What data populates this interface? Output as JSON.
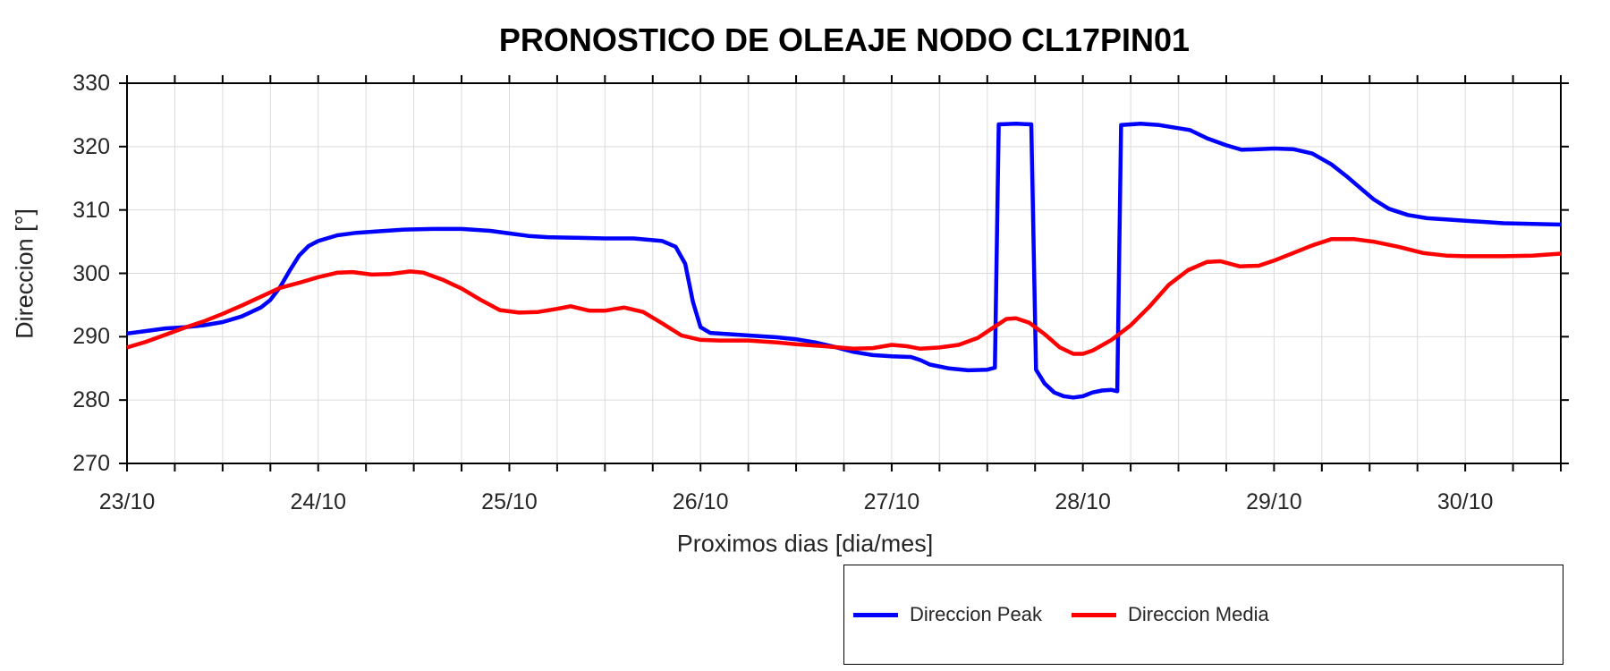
{
  "chart_data": {
    "type": "line",
    "title": "PRONOSTICO DE OLEAJE NODO CL17PIN01",
    "xlabel": "Proximos dias [dia/mes]",
    "ylabel": "Direccion [°]",
    "x_unit": "day of October (23 = 23/10 00:00)",
    "xlim": [
      23,
      30.5
    ],
    "ylim": [
      270,
      330
    ],
    "x_major_ticks": [
      23,
      24,
      25,
      26,
      27,
      28,
      29,
      30
    ],
    "x_tick_labels": [
      "23/10",
      "24/10",
      "25/10",
      "26/10",
      "27/10",
      "28/10",
      "29/10",
      "30/10"
    ],
    "x_minor_step": 0.25,
    "y_ticks": [
      270,
      280,
      290,
      300,
      310,
      320,
      330
    ],
    "grid": true,
    "legend_position": "below-right-outside",
    "colors": {
      "grid": "#dbdbdb",
      "axis": "#000000",
      "text": "#262626"
    },
    "series": [
      {
        "name": "Direccion Peak",
        "color": "#0000ff",
        "points": [
          [
            23.0,
            290.5
          ],
          [
            23.1,
            290.9
          ],
          [
            23.2,
            291.3
          ],
          [
            23.3,
            291.5
          ],
          [
            23.4,
            291.8
          ],
          [
            23.5,
            292.3
          ],
          [
            23.6,
            293.2
          ],
          [
            23.7,
            294.6
          ],
          [
            23.75,
            295.8
          ],
          [
            23.8,
            297.8
          ],
          [
            23.85,
            300.4
          ],
          [
            23.9,
            302.8
          ],
          [
            23.95,
            304.3
          ],
          [
            24.0,
            305.1
          ],
          [
            24.1,
            306.0
          ],
          [
            24.2,
            306.4
          ],
          [
            24.3,
            306.6
          ],
          [
            24.45,
            306.9
          ],
          [
            24.6,
            307.0
          ],
          [
            24.75,
            307.0
          ],
          [
            24.9,
            306.7
          ],
          [
            25.0,
            306.3
          ],
          [
            25.1,
            305.9
          ],
          [
            25.2,
            305.7
          ],
          [
            25.35,
            305.6
          ],
          [
            25.5,
            305.5
          ],
          [
            25.65,
            305.5
          ],
          [
            25.8,
            305.1
          ],
          [
            25.87,
            304.2
          ],
          [
            25.92,
            301.5
          ],
          [
            25.96,
            295.5
          ],
          [
            26.0,
            291.5
          ],
          [
            26.05,
            290.6
          ],
          [
            26.15,
            290.4
          ],
          [
            26.3,
            290.1
          ],
          [
            26.4,
            289.9
          ],
          [
            26.5,
            289.6
          ],
          [
            26.6,
            289.1
          ],
          [
            26.7,
            288.4
          ],
          [
            26.8,
            287.6
          ],
          [
            26.9,
            287.1
          ],
          [
            27.0,
            286.9
          ],
          [
            27.1,
            286.8
          ],
          [
            27.15,
            286.3
          ],
          [
            27.2,
            285.6
          ],
          [
            27.3,
            285.0
          ],
          [
            27.4,
            284.7
          ],
          [
            27.5,
            284.8
          ],
          [
            27.54,
            285.1
          ],
          [
            27.56,
            323.5
          ],
          [
            27.65,
            323.6
          ],
          [
            27.73,
            323.5
          ],
          [
            27.755,
            284.8
          ],
          [
            27.8,
            282.6
          ],
          [
            27.85,
            281.2
          ],
          [
            27.9,
            280.6
          ],
          [
            27.95,
            280.4
          ],
          [
            28.0,
            280.6
          ],
          [
            28.05,
            281.2
          ],
          [
            28.1,
            281.5
          ],
          [
            28.15,
            281.6
          ],
          [
            28.18,
            281.4
          ],
          [
            28.2,
            323.4
          ],
          [
            28.3,
            323.6
          ],
          [
            28.4,
            323.4
          ],
          [
            28.5,
            322.9
          ],
          [
            28.56,
            322.6
          ],
          [
            28.65,
            321.3
          ],
          [
            28.75,
            320.2
          ],
          [
            28.83,
            319.5
          ],
          [
            28.92,
            319.6
          ],
          [
            29.0,
            319.7
          ],
          [
            29.1,
            319.6
          ],
          [
            29.2,
            318.9
          ],
          [
            29.3,
            317.2
          ],
          [
            29.38,
            315.3
          ],
          [
            29.45,
            313.5
          ],
          [
            29.52,
            311.7
          ],
          [
            29.6,
            310.2
          ],
          [
            29.7,
            309.2
          ],
          [
            29.8,
            308.7
          ],
          [
            29.9,
            308.5
          ],
          [
            30.0,
            308.3
          ],
          [
            30.2,
            307.9
          ],
          [
            30.35,
            307.8
          ],
          [
            30.5,
            307.7
          ]
        ]
      },
      {
        "name": "Direccion Media",
        "color": "#ff0000",
        "points": [
          [
            23.0,
            288.3
          ],
          [
            23.1,
            289.2
          ],
          [
            23.2,
            290.3
          ],
          [
            23.3,
            291.4
          ],
          [
            23.4,
            292.4
          ],
          [
            23.5,
            293.6
          ],
          [
            23.6,
            294.9
          ],
          [
            23.7,
            296.3
          ],
          [
            23.8,
            297.7
          ],
          [
            23.9,
            298.5
          ],
          [
            24.0,
            299.4
          ],
          [
            24.1,
            300.1
          ],
          [
            24.18,
            300.2
          ],
          [
            24.28,
            299.8
          ],
          [
            24.38,
            299.9
          ],
          [
            24.48,
            300.3
          ],
          [
            24.55,
            300.1
          ],
          [
            24.65,
            299.0
          ],
          [
            24.75,
            297.6
          ],
          [
            24.85,
            295.8
          ],
          [
            24.95,
            294.2
          ],
          [
            25.05,
            293.8
          ],
          [
            25.15,
            293.9
          ],
          [
            25.25,
            294.4
          ],
          [
            25.32,
            294.8
          ],
          [
            25.42,
            294.1
          ],
          [
            25.5,
            294.1
          ],
          [
            25.6,
            294.6
          ],
          [
            25.7,
            293.9
          ],
          [
            25.8,
            292.1
          ],
          [
            25.9,
            290.2
          ],
          [
            26.0,
            289.5
          ],
          [
            26.1,
            289.4
          ],
          [
            26.25,
            289.4
          ],
          [
            26.4,
            289.1
          ],
          [
            26.5,
            288.8
          ],
          [
            26.65,
            288.5
          ],
          [
            26.8,
            288.1
          ],
          [
            26.9,
            288.2
          ],
          [
            27.0,
            288.7
          ],
          [
            27.08,
            288.5
          ],
          [
            27.15,
            288.1
          ],
          [
            27.25,
            288.3
          ],
          [
            27.35,
            288.7
          ],
          [
            27.45,
            289.8
          ],
          [
            27.52,
            291.2
          ],
          [
            27.6,
            292.8
          ],
          [
            27.65,
            292.9
          ],
          [
            27.72,
            292.2
          ],
          [
            27.8,
            290.4
          ],
          [
            27.88,
            288.3
          ],
          [
            27.95,
            287.3
          ],
          [
            28.0,
            287.3
          ],
          [
            28.05,
            287.8
          ],
          [
            28.15,
            289.5
          ],
          [
            28.25,
            291.8
          ],
          [
            28.35,
            294.8
          ],
          [
            28.45,
            298.2
          ],
          [
            28.55,
            300.5
          ],
          [
            28.65,
            301.8
          ],
          [
            28.72,
            301.9
          ],
          [
            28.82,
            301.1
          ],
          [
            28.92,
            301.2
          ],
          [
            29.0,
            302.0
          ],
          [
            29.1,
            303.2
          ],
          [
            29.2,
            304.4
          ],
          [
            29.3,
            305.4
          ],
          [
            29.42,
            305.4
          ],
          [
            29.52,
            305.0
          ],
          [
            29.65,
            304.2
          ],
          [
            29.78,
            303.2
          ],
          [
            29.9,
            302.8
          ],
          [
            30.0,
            302.7
          ],
          [
            30.2,
            302.7
          ],
          [
            30.35,
            302.8
          ],
          [
            30.5,
            303.1
          ]
        ]
      }
    ]
  }
}
